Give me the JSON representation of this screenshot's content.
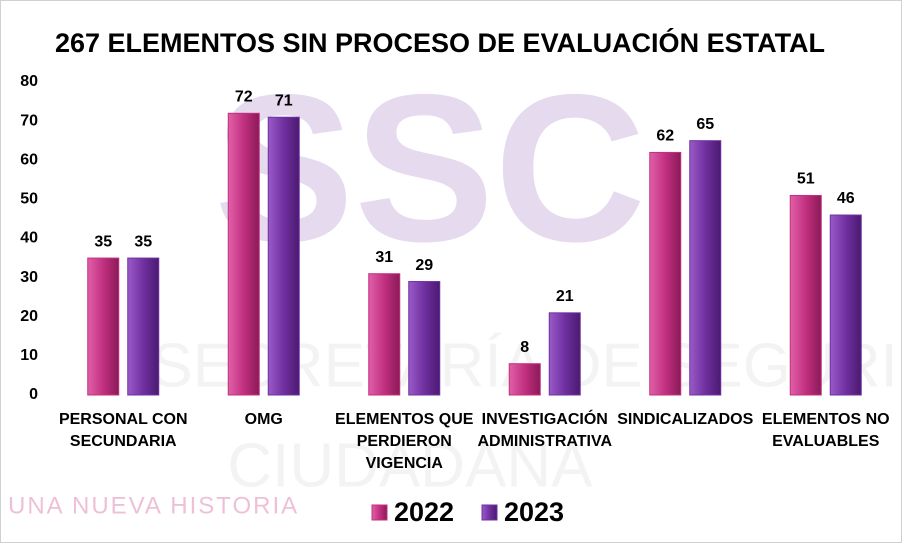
{
  "chart_data": {
    "type": "bar",
    "title": "267 ELEMENTOS SIN PROCESO DE EVALUACIÓN ESTATAL",
    "categories": [
      "PERSONAL CON SECUNDARIA",
      "OMG",
      "ELEMENTOS QUE PERDIERON VIGENCIA",
      "INVESTIGACIÓN ADMINISTRATIVA",
      "SINDICALIZADOS",
      "ELEMENTOS NO EVALUABLES"
    ],
    "series": [
      {
        "name": "2022",
        "color": "#c2307f",
        "values": [
          35,
          72,
          31,
          8,
          62,
          51
        ]
      },
      {
        "name": "2023",
        "color": "#7030a0",
        "values": [
          35,
          71,
          29,
          21,
          65,
          46
        ]
      }
    ],
    "ylim": [
      0,
      80
    ],
    "yticks": [
      0,
      10,
      20,
      30,
      40,
      50,
      60,
      70,
      80
    ],
    "grid": false,
    "legend": "bottom",
    "watermark": {
      "logo": "SSC",
      "line1": "SECRETARÍA DE SEGURIDAD",
      "line2": "CIUDADANA",
      "motto": "UNA NUEVA HISTORIA"
    }
  }
}
